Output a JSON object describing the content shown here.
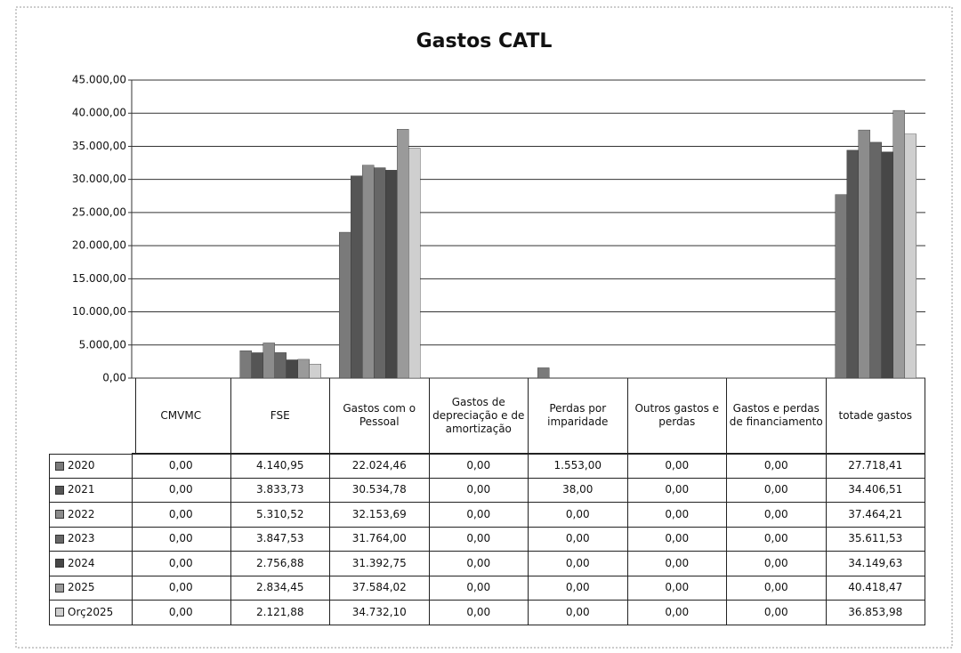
{
  "chart_data": {
    "type": "bar",
    "title": "Gastos CATL",
    "categories": [
      "CMVMC",
      "FSE",
      "Gastos com o Pessoal",
      "Gastos de depreciação e de amortização",
      "Perdas por imparidade",
      "Outros gastos e perdas",
      "Gastos e perdas de financiamento",
      "totade gastos"
    ],
    "series": [
      {
        "name": "2020",
        "color": "#7a7a7a",
        "values": [
          0,
          4140.95,
          22024.46,
          0,
          1553,
          0,
          0,
          27718.41
        ],
        "value_labels": [
          "0,00",
          "4.140,95",
          "22.024,46",
          "0,00",
          "1.553,00",
          "0,00",
          "0,00",
          "27.718,41"
        ]
      },
      {
        "name": "2021",
        "color": "#555555",
        "values": [
          0,
          3833.73,
          30534.78,
          0,
          38,
          0,
          0,
          34406.51
        ],
        "value_labels": [
          "0,00",
          "3.833,73",
          "30.534,78",
          "0,00",
          "38,00",
          "0,00",
          "0,00",
          "34.406,51"
        ]
      },
      {
        "name": "2022",
        "color": "#8c8c8c",
        "values": [
          0,
          5310.52,
          32153.69,
          0,
          0,
          0,
          0,
          37464.21
        ],
        "value_labels": [
          "0,00",
          "5.310,52",
          "32.153,69",
          "0,00",
          "0,00",
          "0,00",
          "0,00",
          "37.464,21"
        ]
      },
      {
        "name": "2023",
        "color": "#666666",
        "values": [
          0,
          3847.53,
          31764.0,
          0,
          0,
          0,
          0,
          35611.53
        ],
        "value_labels": [
          "0,00",
          "3.847,53",
          "31.764,00",
          "0,00",
          "0,00",
          "0,00",
          "0,00",
          "35.611,53"
        ]
      },
      {
        "name": "2024",
        "color": "#474747",
        "values": [
          0,
          2756.88,
          31392.75,
          0,
          0,
          0,
          0,
          34149.63
        ],
        "value_labels": [
          "0,00",
          "2.756,88",
          "31.392,75",
          "0,00",
          "0,00",
          "0,00",
          "0,00",
          "34.149,63"
        ]
      },
      {
        "name": "2025",
        "color": "#9a9a9a",
        "values": [
          0,
          2834.45,
          37584.02,
          0,
          0,
          0,
          0,
          40418.47
        ],
        "value_labels": [
          "0,00",
          "2.834,45",
          "37.584,02",
          "0,00",
          "0,00",
          "0,00",
          "0,00",
          "40.418,47"
        ]
      },
      {
        "name": "Orç2025",
        "color": "#cfcfcf",
        "values": [
          0,
          2121.88,
          34732.1,
          0,
          0,
          0,
          0,
          36853.98
        ],
        "value_labels": [
          "0,00",
          "2.121,88",
          "34.732,10",
          "0,00",
          "0,00",
          "0,00",
          "0,00",
          "36.853,98"
        ]
      }
    ],
    "ylim": [
      0,
      45000
    ],
    "yticks": [
      {
        "value": 0,
        "label": "0,00"
      },
      {
        "value": 5000,
        "label": "5.000,00"
      },
      {
        "value": 10000,
        "label": "10.000,00"
      },
      {
        "value": 15000,
        "label": "15.000,00"
      },
      {
        "value": 20000,
        "label": "20.000,00"
      },
      {
        "value": 25000,
        "label": "25.000,00"
      },
      {
        "value": 30000,
        "label": "30.000,00"
      },
      {
        "value": 35000,
        "label": "35.000,00"
      },
      {
        "value": 40000,
        "label": "40.000,00"
      },
      {
        "value": 45000,
        "label": "45.000,00"
      }
    ],
    "grid": true
  }
}
